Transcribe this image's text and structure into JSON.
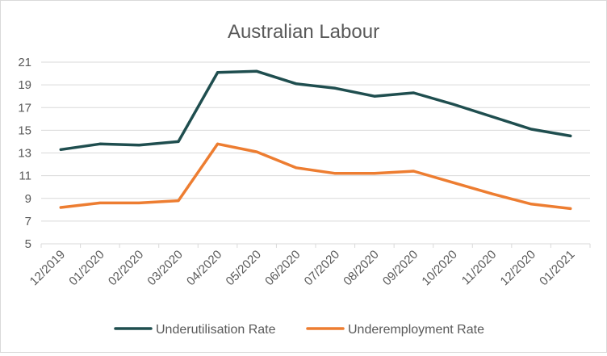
{
  "chart_data": {
    "type": "line",
    "title": "Australian Labour",
    "xlabel": "",
    "ylabel": "",
    "categories": [
      "12/2019",
      "01/2020",
      "02/2020",
      "03/2020",
      "04/2020",
      "05/2020",
      "06/2020",
      "07/2020",
      "08/2020",
      "09/2020",
      "10/2020",
      "11/2020",
      "12/2020",
      "01/2021"
    ],
    "series": [
      {
        "name": "Underutilisation Rate",
        "color": "#1f4e4f",
        "values": [
          13.3,
          13.8,
          13.7,
          14.0,
          20.1,
          20.2,
          19.1,
          18.7,
          18.0,
          18.3,
          17.3,
          16.2,
          15.1,
          14.5
        ]
      },
      {
        "name": "Underemployment Rate",
        "color": "#ed7d31",
        "values": [
          8.2,
          8.6,
          8.6,
          8.8,
          13.8,
          13.1,
          11.7,
          11.2,
          11.2,
          11.4,
          10.4,
          9.4,
          8.5,
          8.1
        ]
      }
    ],
    "ylim": [
      5,
      21
    ],
    "yticks": [
      "5",
      "7",
      "9",
      "11",
      "13",
      "15",
      "17",
      "19",
      "21"
    ],
    "grid": true,
    "legend_position": "bottom"
  }
}
